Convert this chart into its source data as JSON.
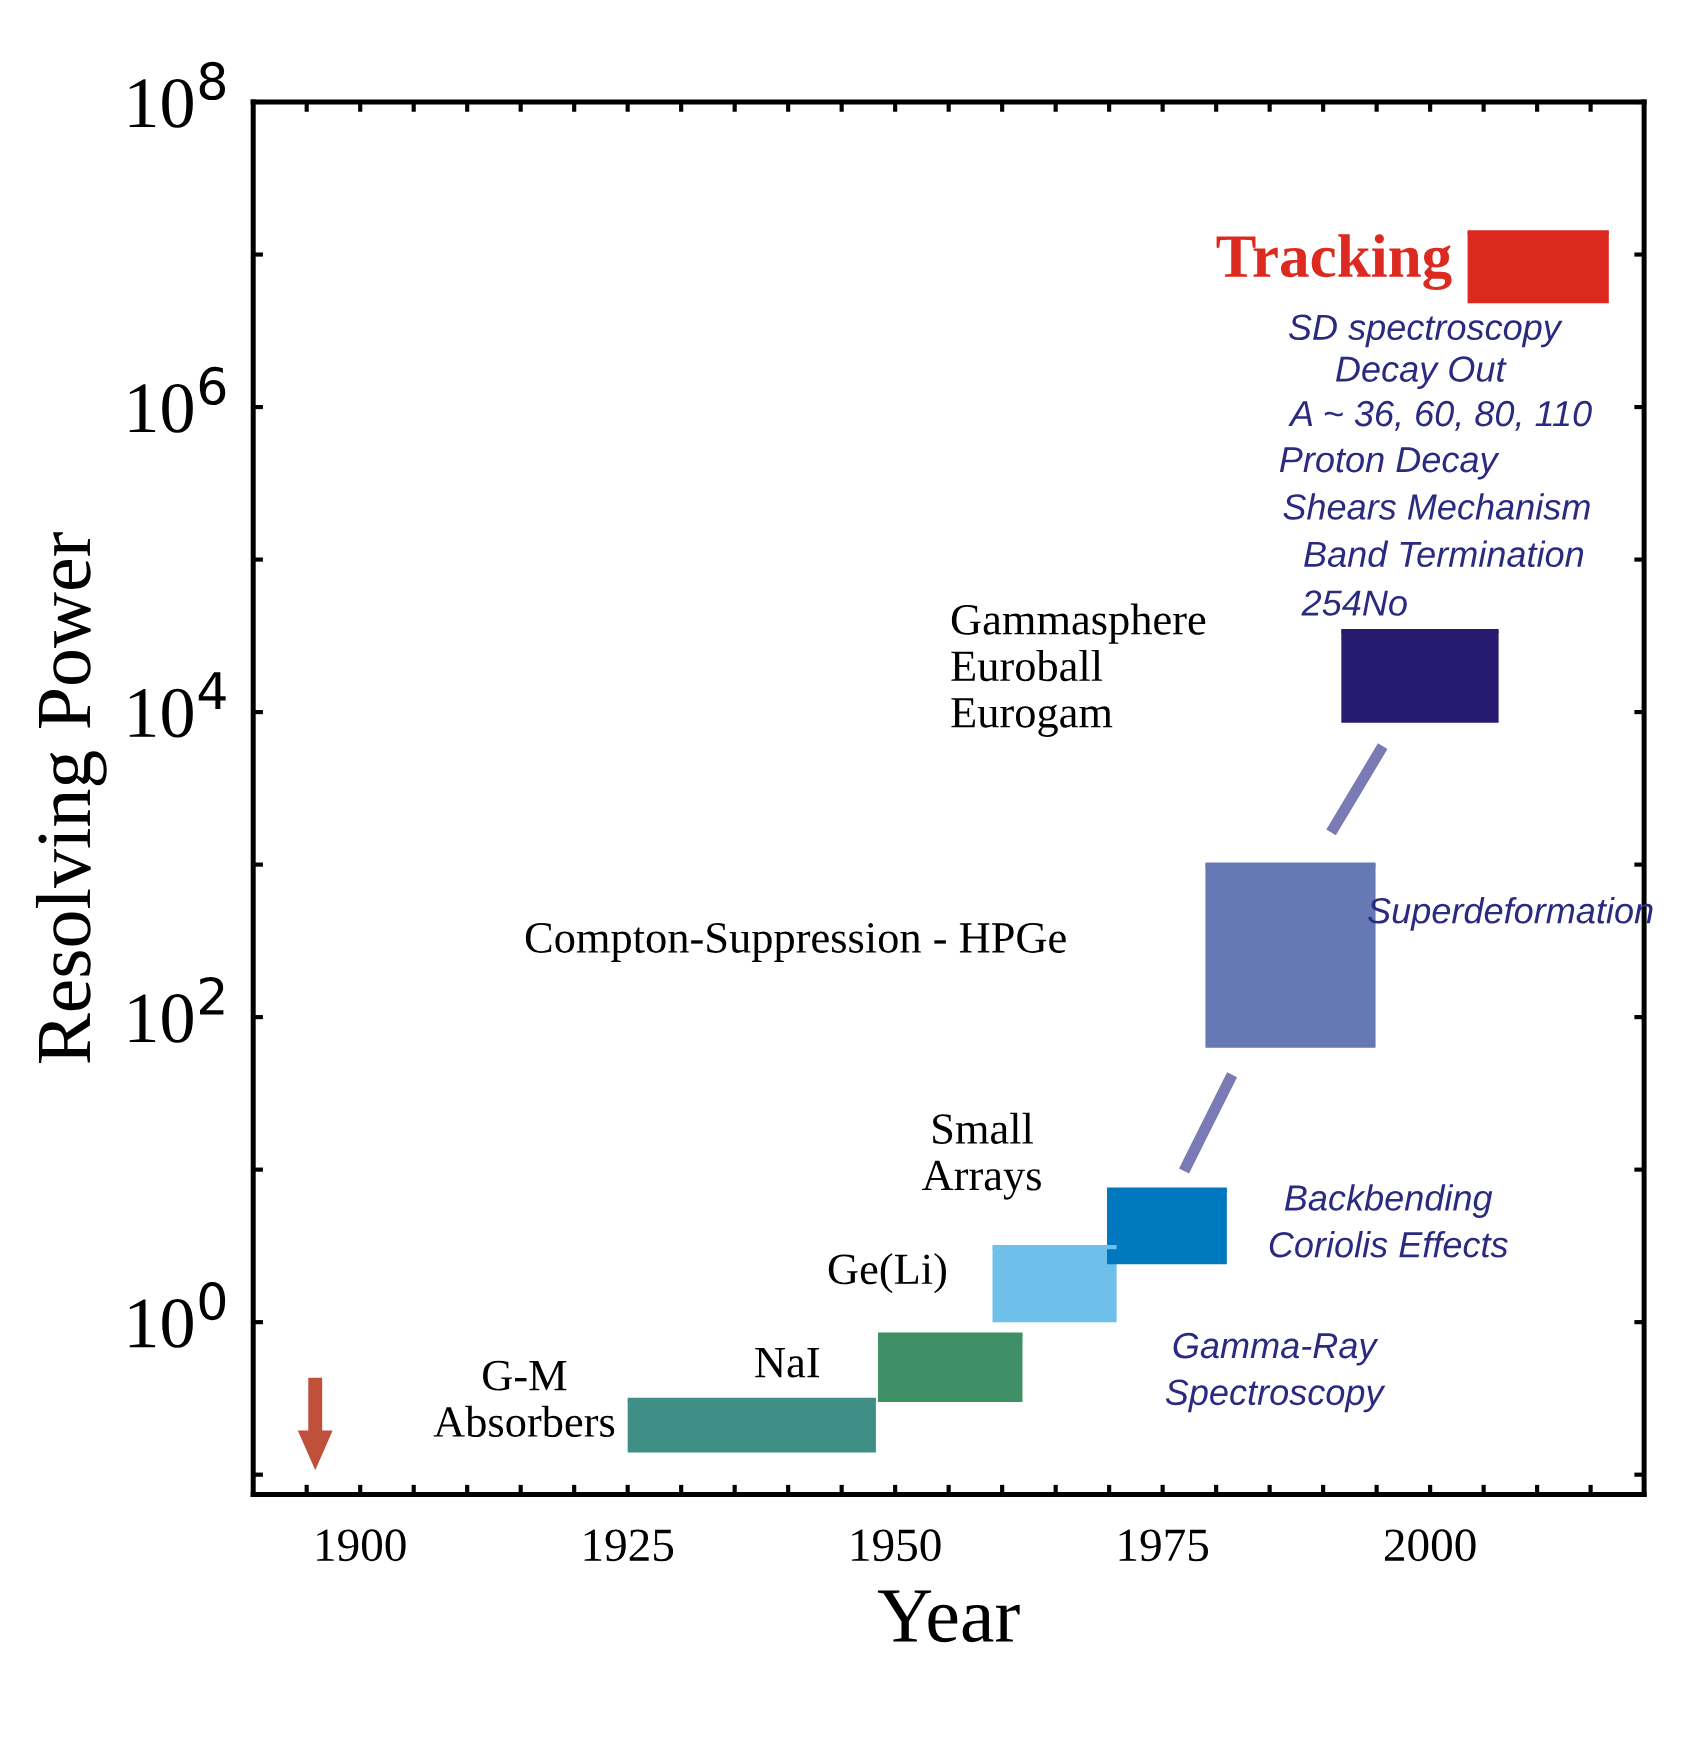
{
  "chart_data": {
    "type": "bar",
    "xlabel": "Year",
    "ylabel": "Resolving Power",
    "log": "y",
    "xlim": [
      1890,
      2020
    ],
    "xticks": [
      {
        "value": 1895,
        "label": null
      },
      1900,
      {
        "value": 1905,
        "label": null
      },
      {
        "value": 1910,
        "label": null
      },
      {
        "value": 1915,
        "label": null
      },
      {
        "value": 1920,
        "label": null
      },
      1925,
      {
        "value": 1930,
        "label": null
      },
      {
        "value": 1935,
        "label": null
      },
      {
        "value": 1940,
        "label": null
      },
      {
        "value": 1945,
        "label": null
      },
      1950,
      {
        "value": 1955,
        "label": null
      },
      {
        "value": 1960,
        "label": null
      },
      {
        "value": 1965,
        "label": null
      },
      {
        "value": 1970,
        "label": null
      },
      1975,
      {
        "value": 1980,
        "label": null
      },
      {
        "value": 1985,
        "label": null
      },
      {
        "value": 1990,
        "label": null
      },
      {
        "value": 1995,
        "label": null
      },
      2000,
      {
        "value": 2005,
        "label": null
      },
      {
        "value": 2010,
        "label": null
      },
      {
        "value": 2015,
        "label": null
      }
    ],
    "ylim": [
      0.074,
      100000000
    ],
    "yticks": [
      {
        "value": 0.1,
        "label": null
      },
      {
        "value": 1,
        "label": "10$^{0}$"
      },
      {
        "value": 10,
        "label": null
      },
      {
        "value": 100,
        "label": "10$^{2}$"
      },
      {
        "value": 1000,
        "label": null
      },
      {
        "value": 10000,
        "label": "10$^{4}$"
      },
      {
        "value": 100000,
        "label": null
      },
      {
        "value": 1000000,
        "label": "10$^{6}$"
      },
      {
        "value": 10000000,
        "label": null
      },
      {
        "value": 100000000,
        "label": "10$^{8}$"
      }
    ],
    "grid": false,
    "legend": false,
    "series": [
      {
        "x": [
          1936.6,
          1955.15,
          1964.9,
          1975.4,
          1986.95,
          1999.05,
          2010.1
        ],
        "xerrors": [
          [
            1925,
            1948.2
          ],
          [
            1948.4,
            1961.9
          ],
          [
            1959.1,
            1970.7
          ],
          [
            1969.8,
            1981.0
          ],
          [
            1979.0,
            1994.9
          ],
          [
            1991.7,
            2006.4
          ],
          [
            2003.5,
            2016.7
          ]
        ],
        "base": [
          0.14,
          0.3,
          1.0,
          2.4,
          63,
          8500,
          4800000
        ],
        "values": [
          0.17,
          0.53,
          2.1,
          5.0,
          937,
          25500,
          9200000
        ],
        "colors": [
          "#3f8f86",
          "#3f8f66",
          "#6ec0ea",
          "#0078c0",
          "#6679b4",
          "#261b6e",
          "#dc2a20"
        ]
      }
    ],
    "annotations": [
      "Tracking",
      "SD spectroscopy",
      "Decay Out",
      "A ~ 36, 60, 80, 110",
      "Proton Decay",
      "Shears Mechanism",
      "Band Termination",
      "254No",
      "Gammasphere\nEuroball\nEurogam",
      "Compton-Suppression - HPGe",
      "Superdeformation",
      "Small\nArrays",
      "Ge(Li)",
      "Backbending\nCoriolis Effects",
      "NaI",
      "Gamma-Ray\nSpectroscopy",
      "G-M\nAbsorbers"
    ]
  }
}
